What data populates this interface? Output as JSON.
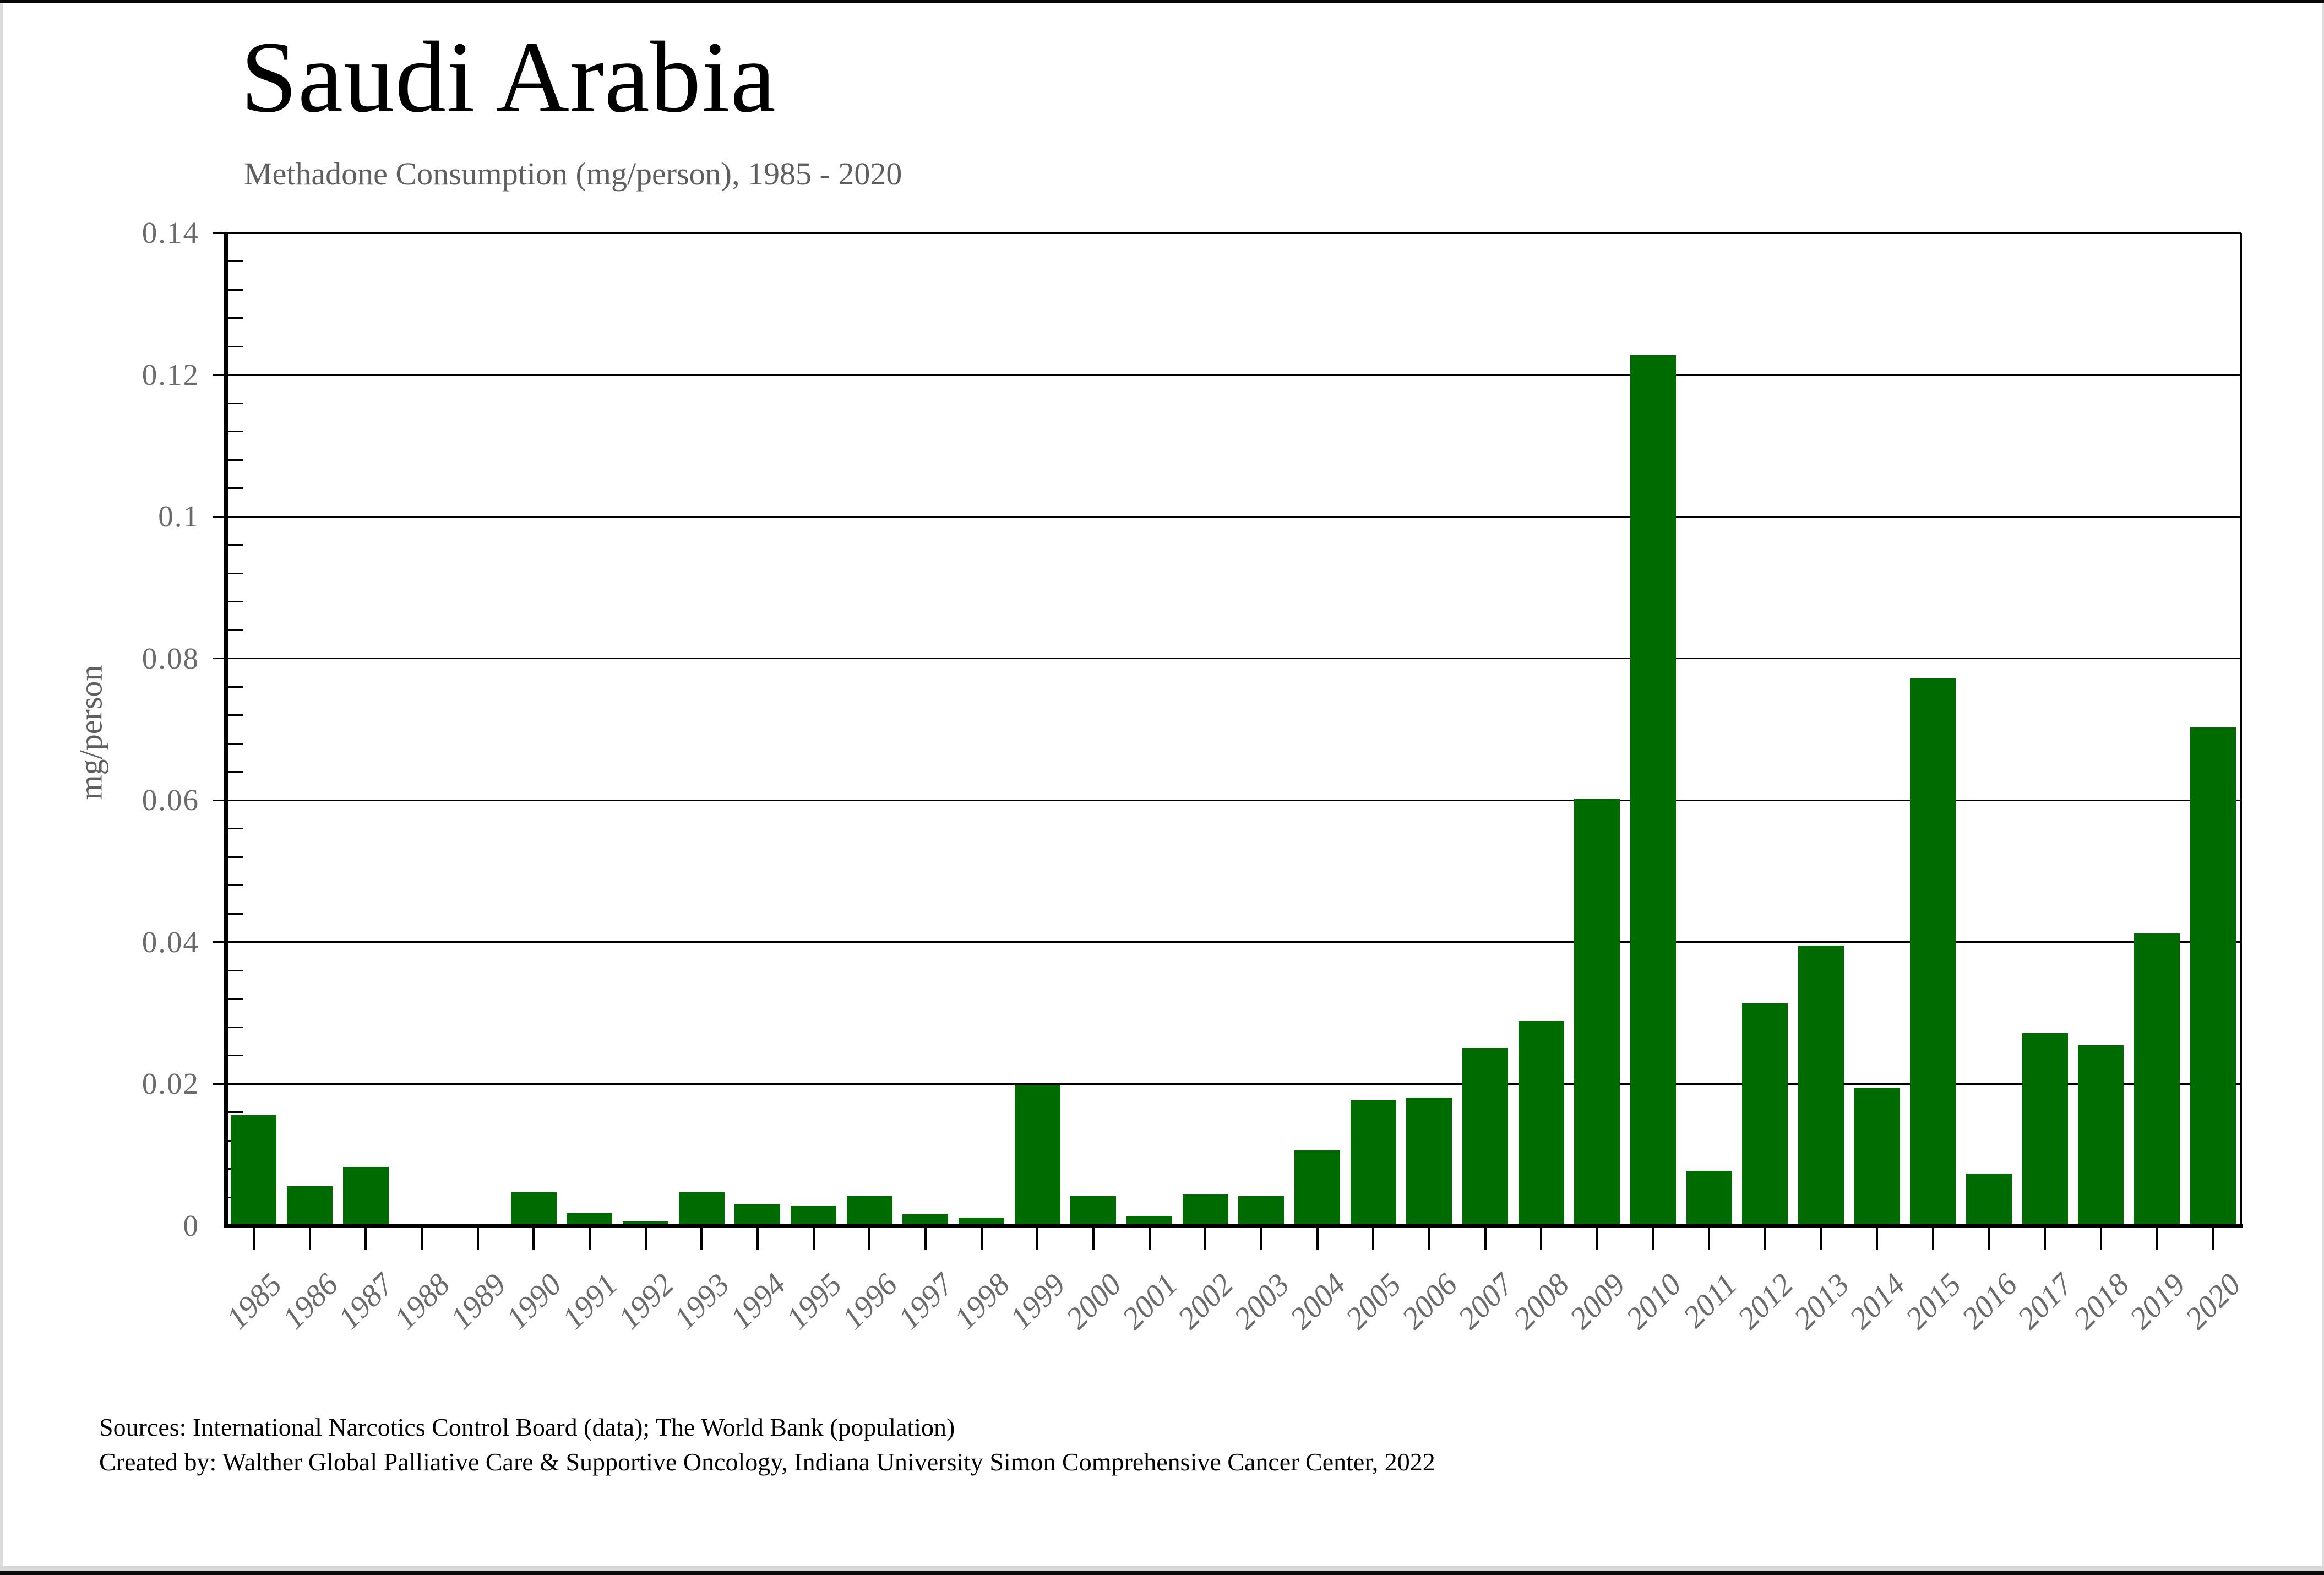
{
  "title": "Saudi Arabia",
  "subtitle": "Methadone Consumption (mg/person), 1985 - 2020",
  "y_axis_title": "mg/person",
  "footer": {
    "line1": "Sources: International Narcotics Control Board (data); The World Bank (population)",
    "line2": "Created by: Walther Global Palliative Care & Supportive Oncology, Indiana University Simon Comprehensive Cancer Center, 2022"
  },
  "colors": {
    "bar": "#006B00",
    "axis": "#000000",
    "tick_text": "#6b6b6b",
    "subtitle_text": "#5f5f5f"
  },
  "chart_data": {
    "type": "bar",
    "title": "Saudi Arabia",
    "subtitle": "Methadone Consumption (mg/person), 1985 - 2020",
    "xlabel": "",
    "ylabel": "mg/person",
    "categories": [
      "1985",
      "1986",
      "1987",
      "1988",
      "1989",
      "1990",
      "1991",
      "1992",
      "1993",
      "1994",
      "1995",
      "1996",
      "1997",
      "1998",
      "1999",
      "2000",
      "2001",
      "2002",
      "2003",
      "2004",
      "2005",
      "2006",
      "2007",
      "2008",
      "2009",
      "2010",
      "2011",
      "2012",
      "2013",
      "2014",
      "2015",
      "2016",
      "2017",
      "2018",
      "2019",
      "2020"
    ],
    "values": [
      0.0156,
      0.0056,
      0.0083,
      0,
      0,
      0.0047,
      0.0018,
      0.0006,
      0.0047,
      0.003,
      0.0028,
      0.0042,
      0.0016,
      0.0012,
      0.0199,
      0.0042,
      0.0014,
      0.0044,
      0.0042,
      0.0106,
      0.0177,
      0.0181,
      0.0251,
      0.0289,
      0.0602,
      0.1228,
      0.0078,
      0.0314,
      0.0395,
      0.0195,
      0.0772,
      0.0074,
      0.0272,
      0.0255,
      0.0412,
      0.0703
    ],
    "ylim": [
      0,
      0.14
    ],
    "ytick_step": 0.02,
    "yminor_step": 0.004,
    "ytick_labels": [
      "0",
      "0.02",
      "0.04",
      "0.06",
      "0.08",
      "0.1",
      "0.12",
      "0.14"
    ],
    "grid": "horizontal-major",
    "legend": "none",
    "bar_color": "#006B00"
  }
}
